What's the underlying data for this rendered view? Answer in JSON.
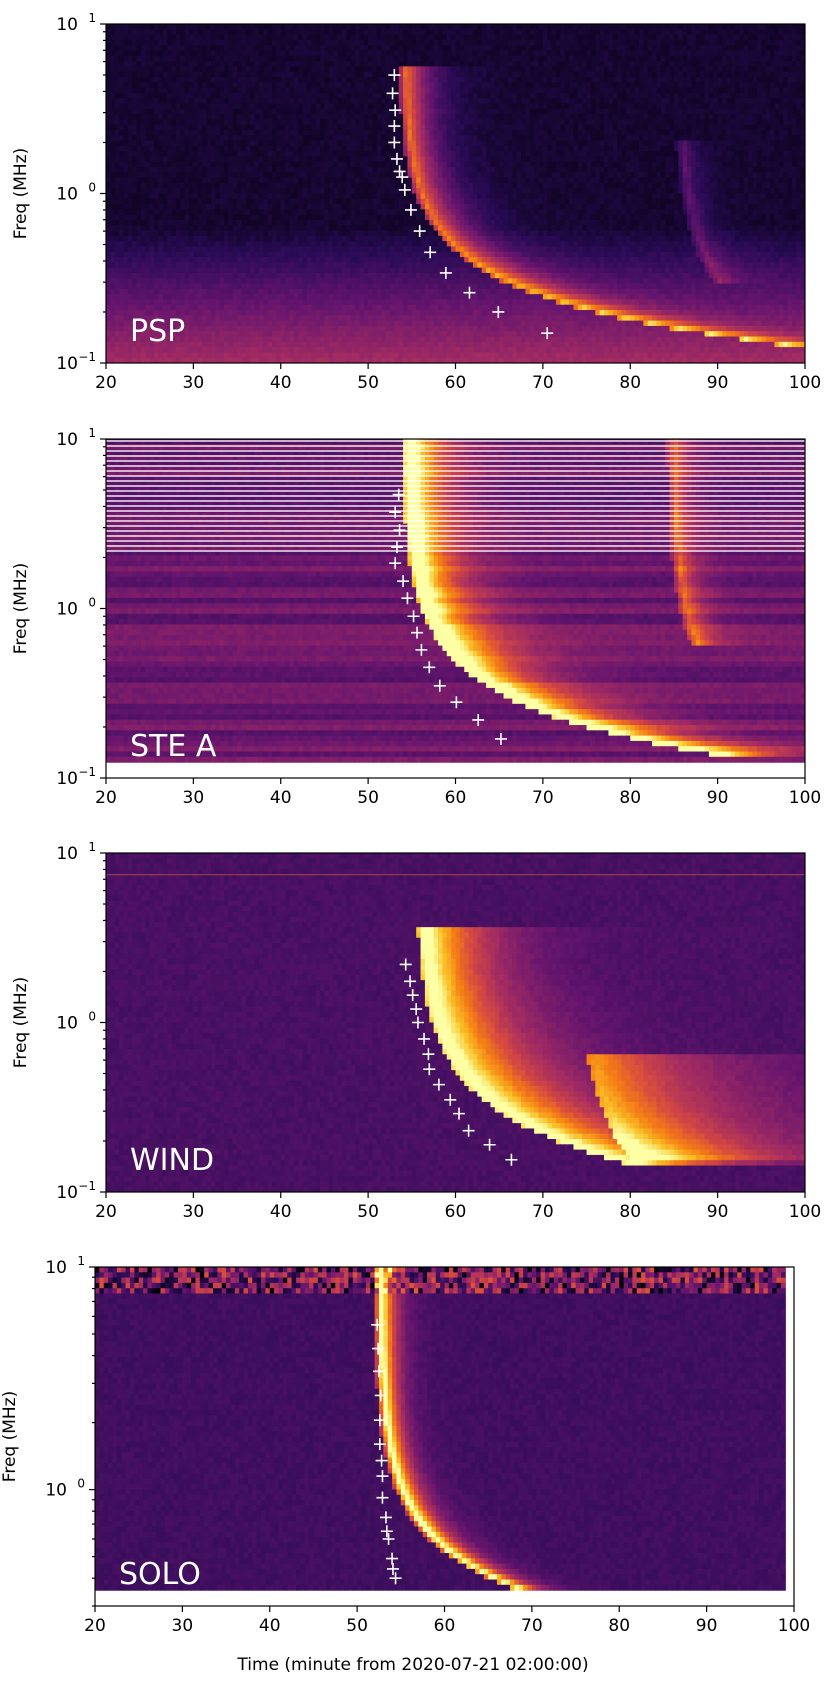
{
  "figure": {
    "xlabel": "Time (minute from 2020-07-21 02:00:00)"
  },
  "colors": {
    "colormap": "inferno",
    "marker": "#ffffff"
  },
  "chart_data": [
    {
      "type": "heatmap",
      "panel_label": "PSP",
      "ylabel": "Freq (MHz)",
      "xlim": [
        20,
        100
      ],
      "ylim": [
        0.1,
        10
      ],
      "yscale": "log",
      "x_ticks": [
        "20",
        "30",
        "40",
        "50",
        "60",
        "70",
        "80",
        "90",
        "100"
      ],
      "y_ticks": [
        {
          "base": "10",
          "exp": "1"
        },
        {
          "base": "10",
          "exp": "0"
        },
        {
          "base": "10",
          "exp": "−1"
        }
      ],
      "grid": false,
      "colormap": "inferno",
      "background_level": 0.08,
      "data_bottom": 0.1,
      "interference_bands": [],
      "burst": {
        "t0": 54.3,
        "x0": 2.0,
        "n": 1.5,
        "f_top": 5.5,
        "f_bottom": 0.1,
        "width": 2.2,
        "peak": 0.62
      },
      "secondary_burst": {
        "t0": 86.0,
        "x0": 1.0,
        "n": 1.3,
        "f_top": 2.0,
        "f_bottom": 0.3,
        "width": 1.2,
        "peak": 0.2
      },
      "markers": {
        "label": "+",
        "points": [
          {
            "x": 53.0,
            "y": 5.0
          },
          {
            "x": 52.8,
            "y": 3.9
          },
          {
            "x": 53.1,
            "y": 3.1
          },
          {
            "x": 53.0,
            "y": 2.5
          },
          {
            "x": 53.0,
            "y": 2.0
          },
          {
            "x": 53.3,
            "y": 1.6
          },
          {
            "x": 53.6,
            "y": 1.35
          },
          {
            "x": 53.9,
            "y": 1.25
          },
          {
            "x": 54.2,
            "y": 1.05
          },
          {
            "x": 54.9,
            "y": 0.8
          },
          {
            "x": 55.9,
            "y": 0.6
          },
          {
            "x": 57.1,
            "y": 0.45
          },
          {
            "x": 58.9,
            "y": 0.34
          },
          {
            "x": 61.6,
            "y": 0.26
          },
          {
            "x": 64.9,
            "y": 0.2
          },
          {
            "x": 70.5,
            "y": 0.15
          }
        ]
      }
    },
    {
      "type": "heatmap",
      "panel_label": "STE A",
      "ylabel": "Freq (MHz)",
      "xlim": [
        20,
        100
      ],
      "ylim": [
        0.1,
        10
      ],
      "yscale": "log",
      "x_ticks": [
        "20",
        "30",
        "40",
        "50",
        "60",
        "70",
        "80",
        "90",
        "100"
      ],
      "y_ticks": [
        {
          "base": "10",
          "exp": "1"
        },
        {
          "base": "10",
          "exp": "0"
        },
        {
          "base": "10",
          "exp": "−1"
        }
      ],
      "grid": false,
      "colormap": "inferno",
      "background_level": 0.3,
      "data_bottom": 0.125,
      "interference_bands": [
        {
          "f_low": 2.1,
          "f_high": 10.0,
          "style": "white-lines"
        }
      ],
      "burst": {
        "t0": 54.7,
        "x0": 2.2,
        "n": 1.4,
        "f_top": 10.0,
        "f_bottom": 0.13,
        "width": 3.0,
        "peak": 0.95
      },
      "secondary_burst": {
        "t0": 85.0,
        "x0": 1.5,
        "n": 1.3,
        "f_top": 10.0,
        "f_bottom": 0.6,
        "width": 1.5,
        "peak": 0.4
      },
      "markers": {
        "label": "+",
        "points": [
          {
            "x": 53.5,
            "y": 4.7
          },
          {
            "x": 53.1,
            "y": 3.7
          },
          {
            "x": 53.6,
            "y": 2.9
          },
          {
            "x": 53.3,
            "y": 2.3
          },
          {
            "x": 53.1,
            "y": 1.85
          },
          {
            "x": 54.0,
            "y": 1.45
          },
          {
            "x": 54.5,
            "y": 1.15
          },
          {
            "x": 55.2,
            "y": 0.9
          },
          {
            "x": 55.6,
            "y": 0.72
          },
          {
            "x": 56.1,
            "y": 0.57
          },
          {
            "x": 57.0,
            "y": 0.45
          },
          {
            "x": 58.2,
            "y": 0.35
          },
          {
            "x": 60.1,
            "y": 0.28
          },
          {
            "x": 62.6,
            "y": 0.22
          },
          {
            "x": 65.2,
            "y": 0.17
          }
        ]
      }
    },
    {
      "type": "heatmap",
      "panel_label": "WIND",
      "ylabel": "Freq (MHz)",
      "xlim": [
        20,
        100
      ],
      "ylim": [
        0.1,
        10
      ],
      "yscale": "log",
      "x_ticks": [
        "20",
        "30",
        "40",
        "50",
        "60",
        "70",
        "80",
        "90",
        "100"
      ],
      "y_ticks": [
        {
          "base": "10",
          "exp": "1"
        },
        {
          "base": "10",
          "exp": "0"
        },
        {
          "base": "10",
          "exp": "−1"
        }
      ],
      "grid": false,
      "colormap": "inferno",
      "background_level": 0.22,
      "data_bottom": 0.1,
      "interference_bands": [
        {
          "f_low": 7.3,
          "f_high": 7.6,
          "style": "faint-line"
        }
      ],
      "burst": {
        "t0": 56.5,
        "x0": 2.0,
        "n": 1.3,
        "f_top": 3.5,
        "f_bottom": 0.14,
        "width": 5.0,
        "peak": 0.9
      },
      "secondary_burst": {
        "t0": 76.0,
        "x0": 1.0,
        "n": 1.0,
        "f_top": 0.6,
        "f_bottom": 0.15,
        "width": 8.0,
        "peak": 0.45
      },
      "markers": {
        "label": "+",
        "points": [
          {
            "x": 54.3,
            "y": 2.2
          },
          {
            "x": 54.8,
            "y": 1.75
          },
          {
            "x": 55.1,
            "y": 1.45
          },
          {
            "x": 55.5,
            "y": 1.2
          },
          {
            "x": 55.7,
            "y": 1.0
          },
          {
            "x": 56.4,
            "y": 0.8
          },
          {
            "x": 56.9,
            "y": 0.65
          },
          {
            "x": 57.0,
            "y": 0.53
          },
          {
            "x": 58.1,
            "y": 0.43
          },
          {
            "x": 59.4,
            "y": 0.35
          },
          {
            "x": 60.4,
            "y": 0.29
          },
          {
            "x": 61.5,
            "y": 0.23
          },
          {
            "x": 63.9,
            "y": 0.19
          },
          {
            "x": 66.4,
            "y": 0.155
          }
        ]
      }
    },
    {
      "type": "heatmap",
      "panel_label": "SOLO",
      "ylabel": "Freq (MHz)",
      "xlabel": "Time (minute from 2020-07-21 02:00:00)",
      "xlim": [
        20,
        100
      ],
      "ylim": [
        0.3,
        10
      ],
      "yscale": "log",
      "x_ticks": [
        "20",
        "30",
        "40",
        "50",
        "60",
        "70",
        "80",
        "90",
        "100"
      ],
      "y_ticks": [
        {
          "base": "10",
          "exp": "1"
        },
        {
          "base": "10",
          "exp": "0"
        }
      ],
      "grid": false,
      "colormap": "inferno",
      "background_level": 0.2,
      "data_bottom": 0.36,
      "data_right": 98.8,
      "interference_bands": [
        {
          "f_low": 7.5,
          "f_high": 10.0,
          "style": "noisy-band"
        }
      ],
      "burst": {
        "t0": 52.7,
        "x0": 2.5,
        "n": 1.8,
        "f_top": 10.0,
        "f_bottom": 0.36,
        "width": 1.2,
        "peak": 1.0
      },
      "secondary_burst": null,
      "markers": {
        "label": "+",
        "points": [
          {
            "x": 52.3,
            "y": 5.5
          },
          {
            "x": 52.4,
            "y": 4.3
          },
          {
            "x": 52.5,
            "y": 3.4
          },
          {
            "x": 52.7,
            "y": 2.65
          },
          {
            "x": 52.6,
            "y": 2.05
          },
          {
            "x": 52.6,
            "y": 1.6
          },
          {
            "x": 52.8,
            "y": 1.35
          },
          {
            "x": 52.9,
            "y": 1.15
          },
          {
            "x": 52.9,
            "y": 0.92
          },
          {
            "x": 53.3,
            "y": 0.75
          },
          {
            "x": 53.4,
            "y": 0.65
          },
          {
            "x": 53.6,
            "y": 0.6
          },
          {
            "x": 54.0,
            "y": 0.49
          },
          {
            "x": 54.1,
            "y": 0.44
          },
          {
            "x": 54.4,
            "y": 0.4
          }
        ]
      }
    }
  ]
}
